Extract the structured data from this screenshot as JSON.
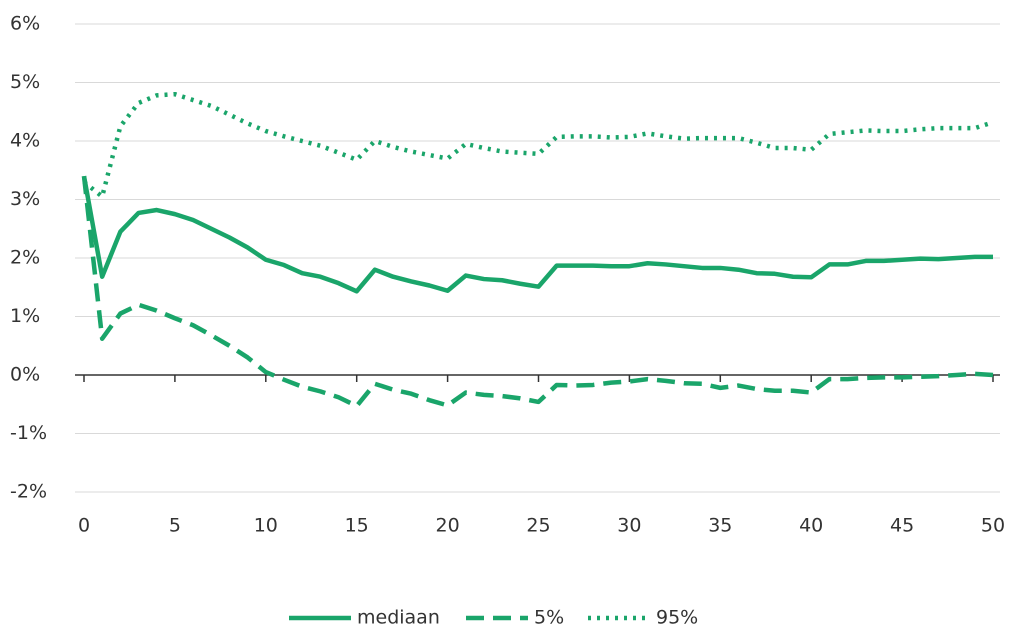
{
  "chart_data": {
    "type": "line",
    "x": [
      0,
      1,
      2,
      3,
      4,
      5,
      6,
      7,
      8,
      9,
      10,
      11,
      12,
      13,
      14,
      15,
      16,
      17,
      18,
      19,
      20,
      21,
      22,
      23,
      24,
      25,
      26,
      27,
      28,
      29,
      30,
      31,
      32,
      33,
      34,
      35,
      36,
      37,
      38,
      39,
      40,
      41,
      42,
      43,
      44,
      45,
      46,
      47,
      48,
      49,
      50
    ],
    "series": [
      {
        "name": "mediaan",
        "color": "#1aa56a",
        "style": "solid",
        "values": [
          3.4,
          1.68,
          2.45,
          2.77,
          2.82,
          2.75,
          2.65,
          2.5,
          2.35,
          2.18,
          1.97,
          1.88,
          1.74,
          1.68,
          1.57,
          1.43,
          1.8,
          1.68,
          1.6,
          1.53,
          1.44,
          1.7,
          1.64,
          1.62,
          1.56,
          1.51,
          1.87,
          1.87,
          1.87,
          1.86,
          1.86,
          1.91,
          1.89,
          1.86,
          1.83,
          1.83,
          1.8,
          1.74,
          1.73,
          1.68,
          1.67,
          1.89,
          1.89,
          1.95,
          1.95,
          1.97,
          1.99,
          1.98,
          2.0,
          2.02,
          2.02
        ]
      },
      {
        "name": "5%",
        "color": "#1aa56a",
        "style": "dashed",
        "values": [
          3.4,
          0.62,
          1.05,
          1.2,
          1.1,
          0.97,
          0.85,
          0.68,
          0.5,
          0.3,
          0.05,
          -0.08,
          -0.2,
          -0.28,
          -0.38,
          -0.53,
          -0.15,
          -0.25,
          -0.32,
          -0.43,
          -0.52,
          -0.3,
          -0.34,
          -0.36,
          -0.4,
          -0.46,
          -0.17,
          -0.18,
          -0.17,
          -0.13,
          -0.11,
          -0.07,
          -0.1,
          -0.14,
          -0.15,
          -0.22,
          -0.18,
          -0.24,
          -0.27,
          -0.27,
          -0.3,
          -0.07,
          -0.07,
          -0.05,
          -0.04,
          -0.04,
          -0.03,
          -0.02,
          0.0,
          0.02,
          0.0
        ]
      },
      {
        "name": "95%",
        "color": "#1aa56a",
        "style": "dotted",
        "values": [
          3.3,
          3.05,
          4.25,
          4.65,
          4.78,
          4.8,
          4.7,
          4.6,
          4.45,
          4.3,
          4.17,
          4.08,
          4.0,
          3.92,
          3.8,
          3.68,
          4.0,
          3.9,
          3.82,
          3.76,
          3.7,
          3.95,
          3.88,
          3.82,
          3.8,
          3.78,
          4.07,
          4.08,
          4.08,
          4.06,
          4.07,
          4.13,
          4.08,
          4.04,
          4.05,
          4.05,
          4.05,
          3.97,
          3.88,
          3.88,
          3.85,
          4.12,
          4.15,
          4.18,
          4.17,
          4.17,
          4.2,
          4.22,
          4.22,
          4.22,
          4.32
        ]
      }
    ],
    "xlim": [
      0,
      50
    ],
    "xticks": [
      0,
      5,
      10,
      15,
      20,
      25,
      30,
      35,
      40,
      45,
      50
    ],
    "ylim": [
      -2,
      6
    ],
    "yticks": [
      {
        "value": -2,
        "label": "-2%"
      },
      {
        "value": -1,
        "label": "-1%"
      },
      {
        "value": 0,
        "label": "0%"
      },
      {
        "value": 1,
        "label": "1%"
      },
      {
        "value": 2,
        "label": "2%"
      },
      {
        "value": 3,
        "label": "3%"
      },
      {
        "value": 4,
        "label": "4%"
      },
      {
        "value": 5,
        "label": "5%"
      },
      {
        "value": 6,
        "label": "6%"
      }
    ],
    "grid": true,
    "legend": "bottom"
  }
}
